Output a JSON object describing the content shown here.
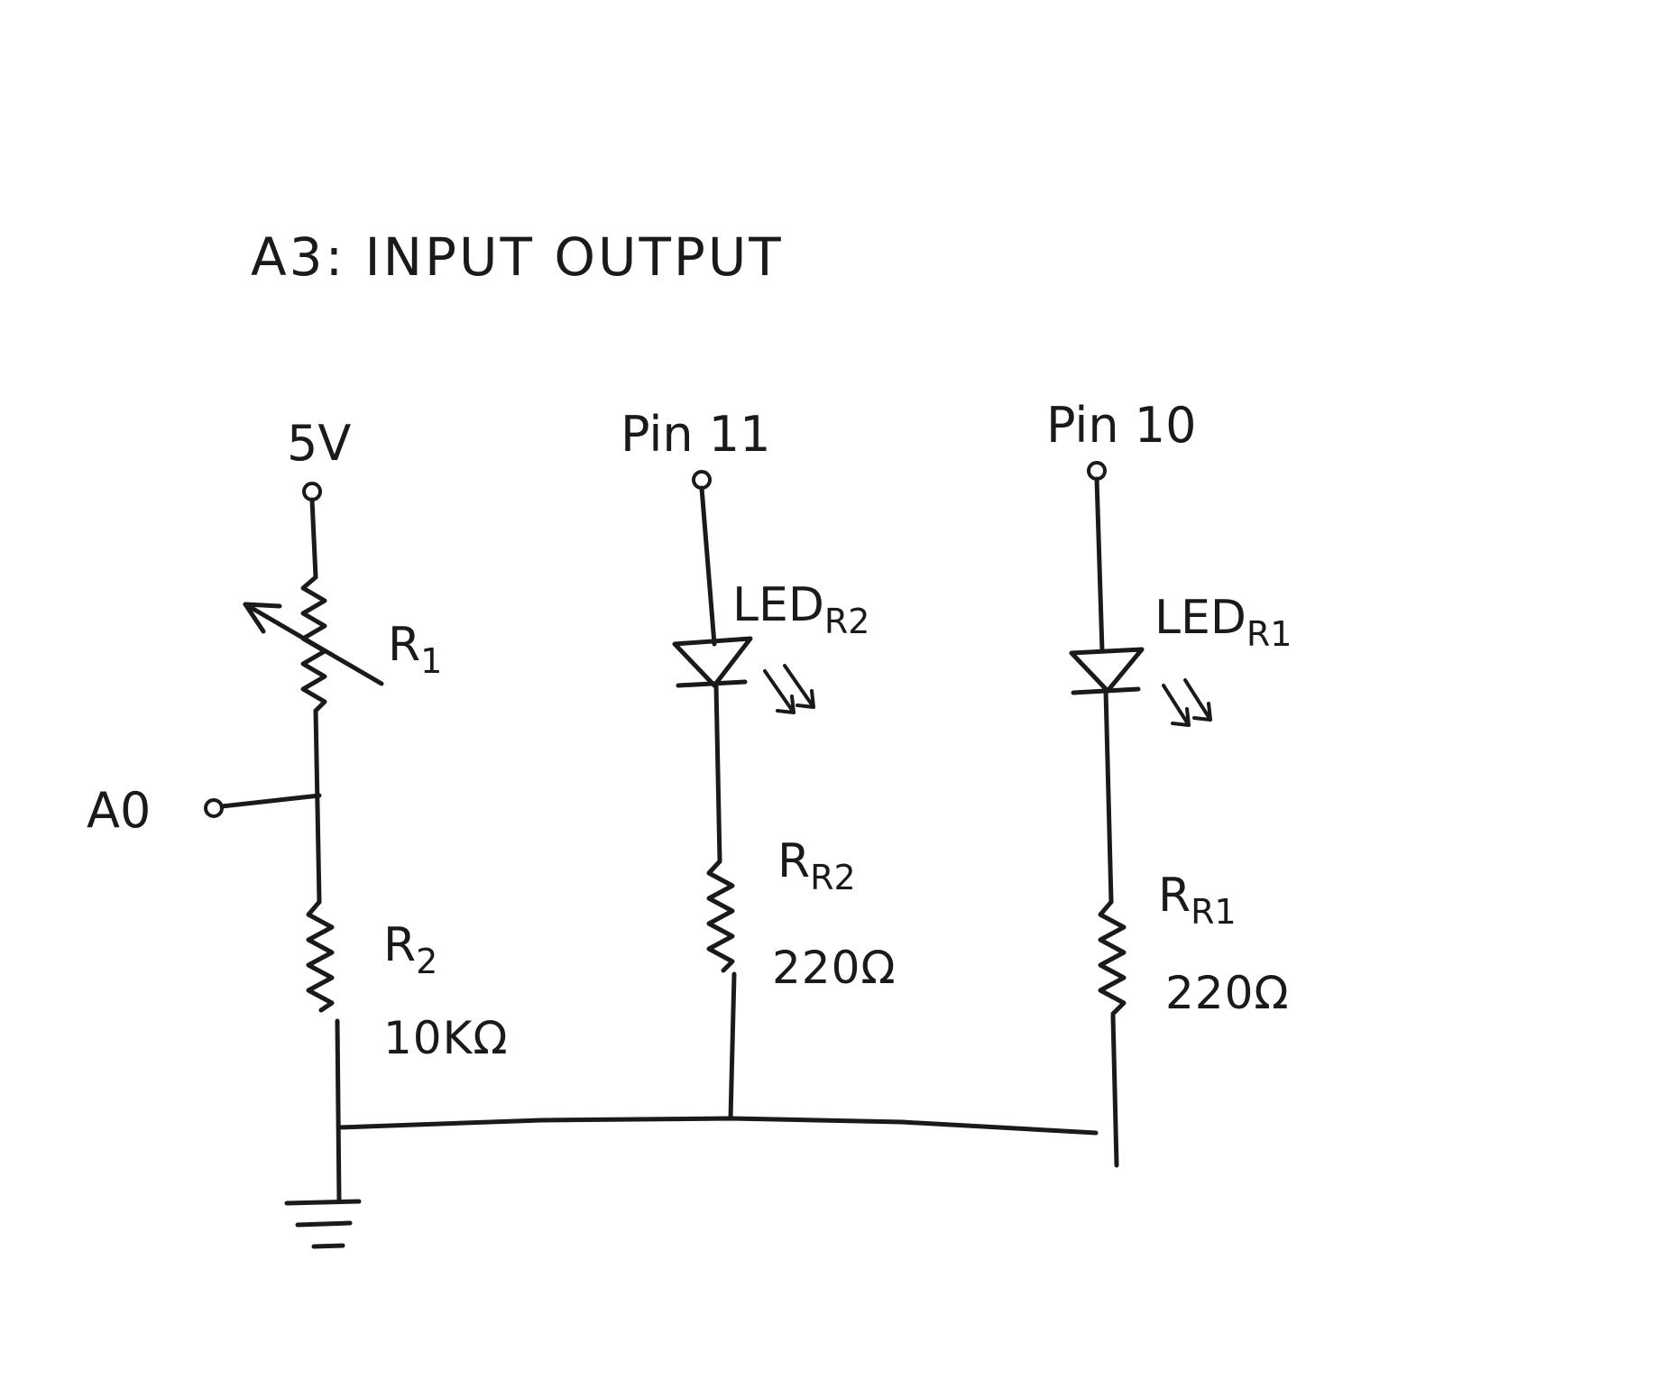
{
  "diagram": {
    "title": "A3: INPUT OUTPUT",
    "supply": {
      "label": "5V"
    },
    "analog_input": {
      "label": "A0"
    },
    "photoresistor": {
      "name": "R",
      "subscript": "1"
    },
    "resistor_r2": {
      "name": "R",
      "subscript": "2",
      "value": "10KΩ"
    },
    "pin11": {
      "label": "Pin 11",
      "led_name": "LED",
      "led_subscript": "R2",
      "resistor_name": "R",
      "resistor_subscript": "R2",
      "resistor_value": "220Ω"
    },
    "pin10": {
      "label": "Pin 10",
      "led_name": "LED",
      "led_subscript": "R1",
      "resistor_name": "R",
      "resistor_subscript": "R1",
      "resistor_value": "220Ω"
    }
  },
  "colors": {
    "ink": "#1a1a1a",
    "paper": "#ffffff"
  }
}
